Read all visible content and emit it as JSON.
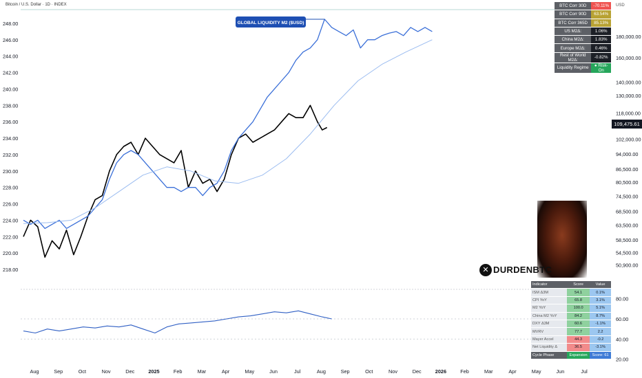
{
  "header": {
    "symbol_line": "Bitcoin / U.S. Dollar · 1D · INDEX"
  },
  "annotation": {
    "label": "GLOBAL LIQUIDITY M2 ($USD)"
  },
  "price_tag": "109,475.61",
  "right_axis_unit": "USD",
  "watermark": {
    "handle": "DURDENBTC",
    "x_icon": "x-logo-icon"
  },
  "colors": {
    "btc": "#000000",
    "m2": "#3a6fd8",
    "ma": "#9bbcf0",
    "osc": "#2f5fc4",
    "annotation_bg": "#1e4fb3"
  },
  "liquidity_table": [
    {
      "key": "BTC Corr 30D",
      "value": "-70.11%",
      "color": "#ef5350"
    },
    {
      "key": "BTC Corr 90D",
      "value": "63.54%",
      "color": "#b8a233"
    },
    {
      "key": "BTC Corr 365D",
      "value": "85.13%",
      "color": "#b8a233"
    },
    {
      "key": "US M2Δ:",
      "value": "1.06%",
      "color": "#1c1f26"
    },
    {
      "key": "China M2Δ:",
      "value": "1.83%",
      "color": "#1c1f26"
    },
    {
      "key": "Europe M2Δ:",
      "value": "0.46%",
      "color": "#1c1f26"
    },
    {
      "key": "Rest of World M2Δ:",
      "value": "-0.82%",
      "color": "#1c1f26"
    },
    {
      "key": "Liquidity Regime",
      "value": "● Risk-On",
      "color": "#26a65b"
    }
  ],
  "indicator_table": {
    "headers": [
      "Indicator",
      "Score",
      "Value"
    ],
    "rows": [
      {
        "name": "ISM Δ3M",
        "score": "54.1",
        "value": "0.1%",
        "score_color": "#8fd19e",
        "value_color": "#9cc7f0"
      },
      {
        "name": "CPI YoY",
        "score": "65.8",
        "value": "3.1%",
        "score_color": "#8fd19e",
        "value_color": "#9cc7f0"
      },
      {
        "name": "M2 YoY",
        "score": "100.0",
        "value": "5.1%",
        "score_color": "#8fd19e",
        "value_color": "#9cc7f0"
      },
      {
        "name": "China M2 YoY",
        "score": "84.2",
        "value": "8.7%",
        "score_color": "#8fd19e",
        "value_color": "#9cc7f0"
      },
      {
        "name": "DXY Δ3M",
        "score": "60.6",
        "value": "-1.1%",
        "score_color": "#8fd19e",
        "value_color": "#9cc7f0"
      },
      {
        "name": "MVRV",
        "score": "77.7",
        "value": "2.2",
        "score_color": "#8fd19e",
        "value_color": "#9cc7f0"
      },
      {
        "name": "Mayer Accel",
        "score": "44.3",
        "value": "-0.2",
        "score_color": "#f28b8b",
        "value_color": "#9cc7f0"
      },
      {
        "name": "Net Liquidity Δ",
        "score": "36.5",
        "value": "-3.1%",
        "score_color": "#f28b8b",
        "value_color": "#9cc7f0"
      }
    ],
    "footer": {
      "phase": "Cycle Phase",
      "state": "Expansion",
      "score": "Score: 61"
    }
  },
  "chart_data": {
    "type": "line",
    "x_ticks": [
      "Aug",
      "Sep",
      "Oct",
      "Nov",
      "Dec",
      "2025",
      "Feb",
      "Mar",
      "Apr",
      "May",
      "Jun",
      "Jul",
      "Aug",
      "Sep",
      "Oct",
      "Nov",
      "Dec",
      "2026",
      "Feb",
      "Mar",
      "Apr",
      "May",
      "Jun",
      "Jul"
    ],
    "left_axis": {
      "ticks": [
        "248.00",
        "246.00",
        "244.00",
        "242.00",
        "240.00",
        "238.00",
        "236.00",
        "234.00",
        "232.00",
        "230.00",
        "228.00",
        "226.00",
        "224.00",
        "222.00",
        "220.00",
        "218.00"
      ],
      "range": [
        217,
        249
      ]
    },
    "right_axis": {
      "ticks": [
        "180,000.00",
        "160,000.00",
        "140,000.00",
        "130,000.00",
        "118,000.00",
        "102,000.00",
        "94,000.00",
        "86,500.00",
        "80,500.00",
        "74,500.00",
        "68,500.00",
        "63,500.00",
        "58,500.00",
        "54,500.00",
        "50,900.00"
      ],
      "scale": "log"
    },
    "osc_axis": {
      "ticks": [
        "80.00",
        "60.00",
        "40.00",
        "20.00"
      ],
      "range": [
        15,
        90
      ]
    },
    "series": [
      {
        "name": "",
        "role": "btc",
        "x": [
          0,
          0.3,
          0.6,
          0.9,
          1.2,
          1.5,
          1.8,
          2.1,
          2.4,
          2.7,
          3.0,
          3.3,
          3.6,
          3.9,
          4.2,
          4.5,
          4.8,
          5.1,
          5.4,
          5.7,
          6.0,
          6.3,
          6.6,
          6.9,
          7.2,
          7.5,
          7.8,
          8.1,
          8.4,
          8.7,
          9.0,
          9.3,
          9.6,
          9.9,
          10.2,
          10.5,
          10.8,
          11.1,
          11.4,
          11.7,
          12.0,
          12.3,
          12.5,
          12.7
        ],
        "y": [
          222.0,
          224.0,
          223.2,
          219.5,
          221.5,
          220.5,
          222.8,
          219.8,
          222.0,
          224.5,
          226.5,
          227.0,
          230.0,
          232.0,
          233.0,
          233.5,
          232.0,
          234.0,
          233.0,
          232.0,
          231.5,
          231.0,
          232.5,
          228.0,
          230.0,
          228.5,
          229.0,
          227.5,
          229.0,
          232.0,
          234.0,
          234.5,
          233.5,
          234.0,
          234.5,
          235.0,
          236.0,
          237.0,
          236.5,
          236.5,
          238.0,
          236.0,
          235.0,
          235.3
        ]
      },
      {
        "name": "",
        "role": "m2",
        "x": [
          0,
          0.3,
          0.6,
          0.9,
          1.2,
          1.5,
          1.8,
          2.1,
          2.4,
          2.7,
          3.0,
          3.3,
          3.6,
          3.9,
          4.2,
          4.5,
          4.8,
          5.1,
          5.4,
          5.7,
          6.0,
          6.3,
          6.6,
          6.9,
          7.2,
          7.5,
          7.8,
          8.1,
          8.4,
          8.7,
          9.0,
          9.3,
          9.6,
          9.9,
          10.2,
          10.5,
          10.8,
          11.1,
          11.4,
          11.7,
          12.0,
          12.3,
          12.6,
          12.9,
          13.2,
          13.5,
          13.8,
          14.1,
          14.4,
          14.7,
          15.0,
          15.3,
          15.6,
          15.9,
          16.2,
          16.5,
          16.8,
          17.1
        ],
        "y": [
          224.0,
          223.5,
          224.0,
          223.0,
          223.5,
          224.0,
          223.0,
          223.5,
          224.0,
          224.5,
          225.5,
          226.5,
          229.0,
          231.0,
          232.0,
          232.5,
          232.0,
          231.0,
          230.0,
          229.0,
          228.0,
          228.0,
          227.5,
          228.0,
          228.0,
          227.0,
          228.0,
          228.5,
          230.0,
          232.5,
          234.0,
          235.0,
          236.0,
          237.5,
          239.0,
          240.0,
          241.0,
          242.0,
          243.5,
          244.5,
          245.0,
          246.0,
          248.5,
          247.5,
          247.0,
          246.5,
          247.2,
          245.0,
          246.0,
          246.0,
          246.5,
          246.8,
          247.0,
          246.5,
          247.5,
          247.0,
          247.5,
          247.0
        ]
      },
      {
        "name": "",
        "role": "m2_ma",
        "x": [
          0,
          1,
          2,
          3,
          4,
          5,
          6,
          7,
          8,
          9,
          10,
          11,
          12,
          13,
          14,
          15,
          16,
          17.1
        ],
        "y": [
          223.6,
          223.7,
          224.0,
          225.5,
          227.5,
          229.5,
          230.5,
          230.0,
          228.8,
          228.5,
          229.5,
          231.5,
          234.5,
          238.0,
          241.0,
          243.0,
          244.5,
          246.0
        ]
      },
      {
        "name": "",
        "role": "oscillator",
        "x": [
          0,
          0.5,
          1,
          1.5,
          2,
          2.5,
          3,
          3.5,
          4,
          4.5,
          5,
          5.5,
          6,
          6.5,
          7,
          7.5,
          8,
          8.5,
          9,
          9.5,
          10,
          10.5,
          11,
          11.5,
          12,
          12.5,
          12.9
        ],
        "y": [
          48,
          46,
          50,
          48,
          50,
          52,
          51,
          53,
          52,
          54,
          50,
          46,
          52,
          55,
          56,
          57,
          58,
          60,
          62,
          63,
          65,
          67,
          66,
          68,
          65,
          62,
          60
        ]
      }
    ]
  }
}
